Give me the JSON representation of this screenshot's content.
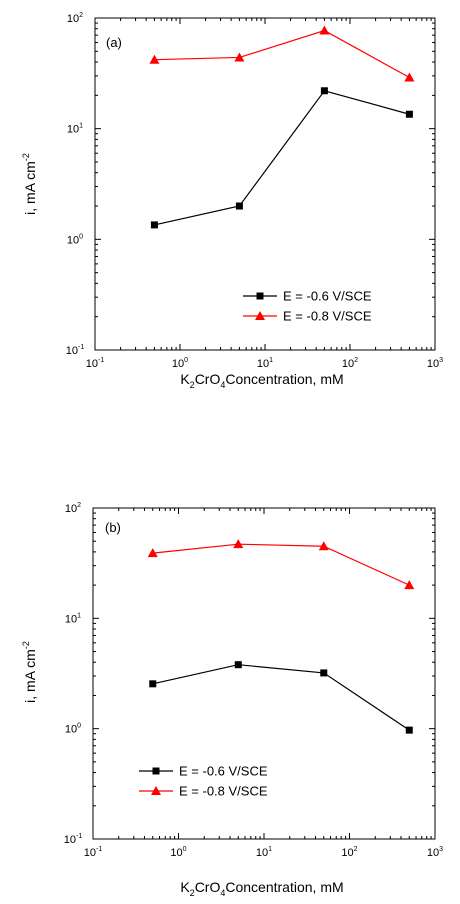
{
  "chart_data": [
    {
      "type": "line",
      "panel_label": "(a)",
      "xlabel_parts": [
        "K",
        "2",
        "CrO",
        "4",
        "Concentration, mM"
      ],
      "ylabel_parts": [
        "i, mA cm",
        "-2"
      ],
      "x_scale": "log",
      "y_scale": "log",
      "xlim": [
        0.1,
        1000
      ],
      "ylim": [
        0.1,
        100
      ],
      "x_tick_exponents": [
        "-1",
        "0",
        "1",
        "2",
        "3"
      ],
      "y_tick_exponents": [
        "-1",
        "0",
        "1",
        "2"
      ],
      "tick_base": "10",
      "grid": false,
      "legend_position": "lower-right",
      "series": [
        {
          "name": "E = -0.6 V/SCE",
          "color": "#000000",
          "marker": "square",
          "x": [
            0.5,
            5,
            50,
            500
          ],
          "y": [
            1.35,
            2.0,
            22,
            13.5
          ]
        },
        {
          "name": "E = -0.8 V/SCE",
          "color": "#ff0000",
          "marker": "triangle",
          "x": [
            0.5,
            5,
            50,
            500
          ],
          "y": [
            42,
            44,
            77,
            29
          ]
        }
      ]
    },
    {
      "type": "line",
      "panel_label": "(b)",
      "xlabel_parts": [
        "K",
        "2",
        "CrO",
        "4",
        "Concentration, mM"
      ],
      "ylabel_parts": [
        "i, mA cm",
        "-2"
      ],
      "x_scale": "log",
      "y_scale": "log",
      "xlim": [
        0.1,
        1000
      ],
      "ylim": [
        0.1,
        100
      ],
      "x_tick_exponents": [
        "-1",
        "0",
        "1",
        "2",
        "3"
      ],
      "y_tick_exponents": [
        "-1",
        "0",
        "1",
        "2"
      ],
      "tick_base": "10",
      "grid": false,
      "legend_position": "lower-left",
      "series": [
        {
          "name": "E = -0.6 V/SCE",
          "color": "#000000",
          "marker": "square",
          "x": [
            0.5,
            5,
            50,
            500
          ],
          "y": [
            2.55,
            3.8,
            3.2,
            0.97
          ]
        },
        {
          "name": "E = -0.8 V/SCE",
          "color": "#ff0000",
          "marker": "triangle",
          "x": [
            0.5,
            5,
            50,
            500
          ],
          "y": [
            39,
            47,
            45,
            20
          ]
        }
      ]
    }
  ]
}
